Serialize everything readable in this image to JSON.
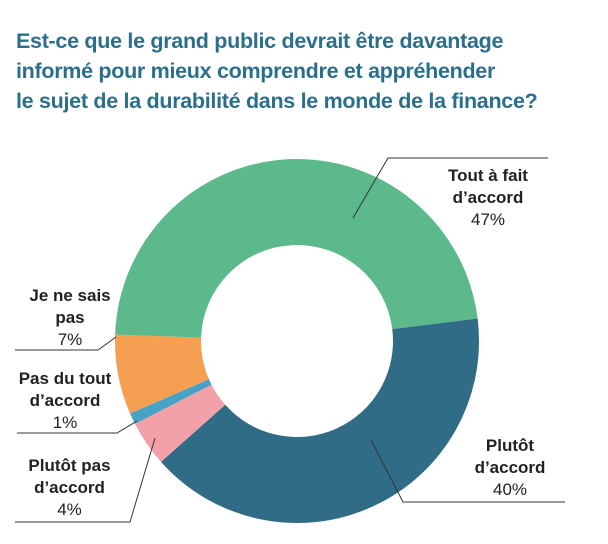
{
  "title_lines": [
    "Est-ce que le grand public devrait être davantage",
    "informé pour mieux comprendre et appréhender",
    "le sujet de la durabilité dans le monde de la finance?"
  ],
  "chart_data": {
    "type": "pie",
    "donut": true,
    "title": "Est-ce que le grand public devrait être davantage informé pour mieux comprendre et appréhender le sujet de la durabilité dans le monde de la finance?",
    "slices": [
      {
        "label_lines": [
          "Tout à fait",
          "d’accord"
        ],
        "value": 47,
        "value_label": "47%",
        "color": "#5cb98c"
      },
      {
        "label_lines": [
          "Plutôt",
          "d’accord"
        ],
        "value": 40,
        "value_label": "40%",
        "color": "#306c86"
      },
      {
        "label_lines": [
          "Plutôt pas",
          "d’accord"
        ],
        "value": 4,
        "value_label": "4%",
        "color": "#f3a1a9"
      },
      {
        "label_lines": [
          "Pas du tout",
          "d’accord"
        ],
        "value": 1,
        "value_label": "1%",
        "color": "#48a2c6"
      },
      {
        "label_lines": [
          "Je ne sais",
          "pas"
        ],
        "value": 7,
        "value_label": "7%",
        "color": "#f59f52"
      }
    ]
  }
}
